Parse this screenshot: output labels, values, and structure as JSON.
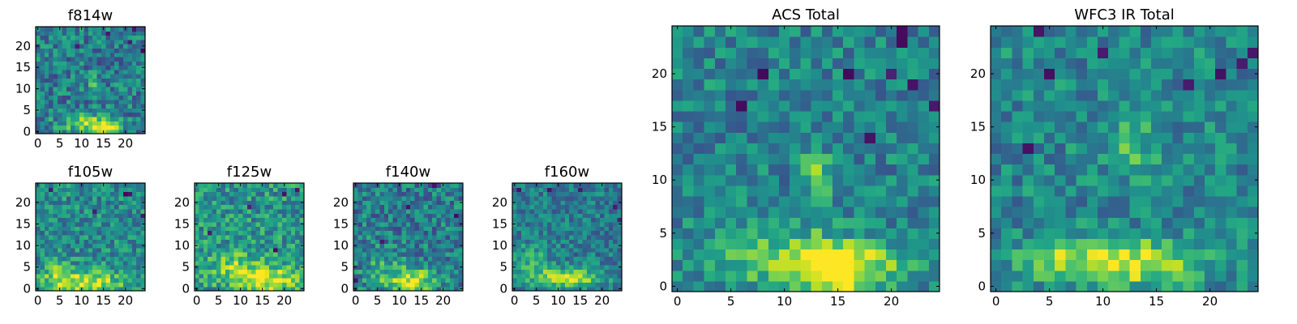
{
  "chart_data": [
    {
      "type": "heatmap",
      "title": "f814w",
      "colormap": "viridis",
      "grid": false,
      "xlim": [
        -0.5,
        24.5
      ],
      "ylim": [
        -0.5,
        24.5
      ],
      "xticks": [
        0,
        5,
        10,
        15,
        20
      ],
      "yticks": [
        0,
        5,
        10,
        15,
        20
      ],
      "shape": [
        25,
        25
      ],
      "origin": "lower",
      "features": "bright blob at x≈12–17, y≈0–3; faint knot at x≈13, y≈12; dark pixels near top-right"
    },
    {
      "type": "heatmap",
      "title": "f105w",
      "colormap": "viridis",
      "grid": false,
      "xlim": [
        -0.5,
        24.5
      ],
      "ylim": [
        -0.5,
        24.5
      ],
      "xticks": [
        0,
        5,
        10,
        15,
        20
      ],
      "yticks": [
        0,
        5,
        10,
        15,
        20
      ],
      "shape": [
        25,
        25
      ],
      "origin": "lower",
      "features": "bright band at y≈0–4 across x≈3–20"
    },
    {
      "type": "heatmap",
      "title": "f125w",
      "colormap": "viridis",
      "grid": false,
      "xlim": [
        -0.5,
        24.5
      ],
      "ylim": [
        -0.5,
        24.5
      ],
      "xticks": [
        0,
        5,
        10,
        15,
        20
      ],
      "yticks": [
        0,
        5,
        10,
        15,
        20
      ],
      "shape": [
        25,
        25
      ],
      "origin": "lower",
      "features": "bright band at y≈0–6, brightest x≈15–18"
    },
    {
      "type": "heatmap",
      "title": "f140w",
      "colormap": "viridis",
      "grid": false,
      "xlim": [
        -0.5,
        24.5
      ],
      "ylim": [
        -0.5,
        24.5
      ],
      "xticks": [
        0,
        5,
        10,
        15,
        20
      ],
      "yticks": [
        0,
        5,
        10,
        15,
        20
      ],
      "shape": [
        25,
        25
      ],
      "origin": "lower",
      "features": "bright area x≈10–16, y≈0–4"
    },
    {
      "type": "heatmap",
      "title": "f160w",
      "colormap": "viridis",
      "grid": false,
      "xlim": [
        -0.5,
        24.5
      ],
      "ylim": [
        -0.5,
        24.5
      ],
      "xticks": [
        0,
        5,
        10,
        15,
        20
      ],
      "yticks": [
        0,
        5,
        10,
        15,
        20
      ],
      "shape": [
        25,
        25
      ],
      "origin": "lower",
      "features": "bright band x≈7–18, y≈1–4"
    },
    {
      "type": "heatmap",
      "title": "ACS Total",
      "colormap": "viridis",
      "grid": false,
      "xlim": [
        -0.5,
        24.5
      ],
      "ylim": [
        -0.5,
        24.5
      ],
      "xticks": [
        0,
        5,
        10,
        15,
        20
      ],
      "yticks": [
        0,
        5,
        10,
        15,
        20
      ],
      "shape": [
        25,
        25
      ],
      "origin": "lower",
      "features": "bright region x≈6–19, y≈0–4 peaking x≈14–17; knot at x≈13, y≈11–12"
    },
    {
      "type": "heatmap",
      "title": "WFC3 IR Total",
      "colormap": "viridis",
      "grid": false,
      "xlim": [
        -0.5,
        24.5
      ],
      "ylim": [
        -0.5,
        24.5
      ],
      "xticks": [
        0,
        5,
        10,
        15,
        20
      ],
      "yticks": [
        0,
        5,
        10,
        15,
        20
      ],
      "shape": [
        25,
        25
      ],
      "origin": "lower",
      "features": "bright band x≈3–19, y≈1–4 peaking x≈10–17"
    }
  ]
}
